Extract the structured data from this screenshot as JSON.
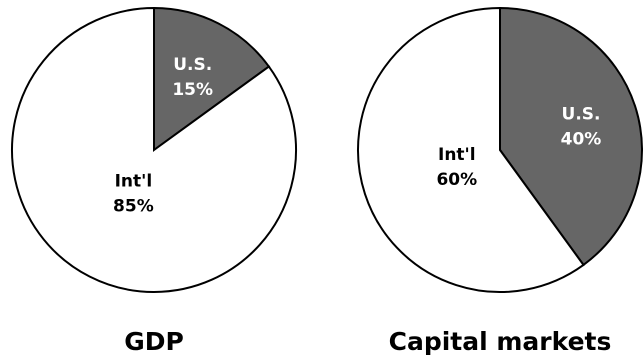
{
  "colors": {
    "us_slice": "#666666",
    "intl_slice": "#ffffff",
    "outline": "#000000",
    "us_label": "#ffffff",
    "intl_label": "#000000"
  },
  "chart_data": [
    {
      "type": "pie",
      "title": "GDP",
      "slices": [
        {
          "label": "U.S.",
          "value": 15,
          "display": "15%"
        },
        {
          "label": "Int'l",
          "value": 85,
          "display": "85%"
        }
      ]
    },
    {
      "type": "pie",
      "title": "Capital markets",
      "slices": [
        {
          "label": "U.S.",
          "value": 40,
          "display": "40%"
        },
        {
          "label": "Int'l",
          "value": 60,
          "display": "60%"
        }
      ]
    }
  ]
}
